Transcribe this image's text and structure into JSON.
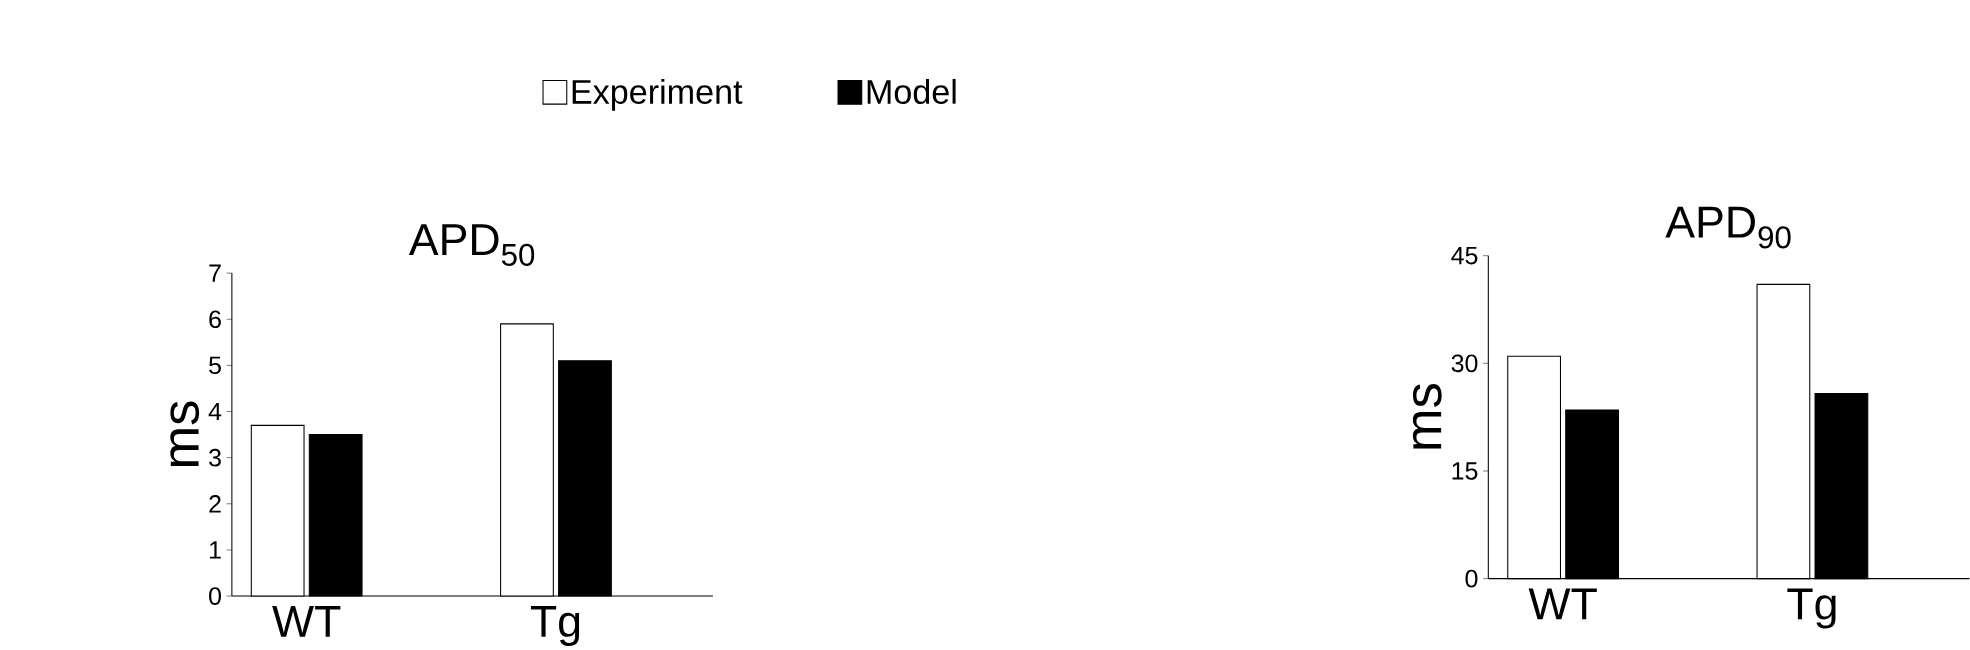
{
  "chart_data": [
    {
      "type": "bar",
      "title": "APD$_{50}$",
      "ylabel": "ms",
      "categories": [
        "WT",
        "Tg"
      ],
      "ylim": [
        0,
        7
      ],
      "yticks": [
        0,
        1,
        2,
        3,
        4,
        5,
        6,
        7
      ],
      "legend": "top",
      "series": [
        {
          "name": "Experiment",
          "color": "#ffffff",
          "values": [
            3.7,
            5.9
          ]
        },
        {
          "name": "Model",
          "color": "#000000",
          "values": [
            3.5,
            5.1
          ]
        }
      ]
    },
    {
      "type": "bar",
      "title": "APD$_{90}$",
      "ylabel": "ms",
      "categories": [
        "WT",
        "Tg"
      ],
      "ylim": [
        0,
        45
      ],
      "yticks": [
        0,
        15,
        30,
        45
      ],
      "series": [
        {
          "color": "#ffffff",
          "values": [
            31,
            41
          ]
        },
        {
          "color": "#000000",
          "values": [
            23.5,
            25.8
          ]
        }
      ]
    }
  ]
}
